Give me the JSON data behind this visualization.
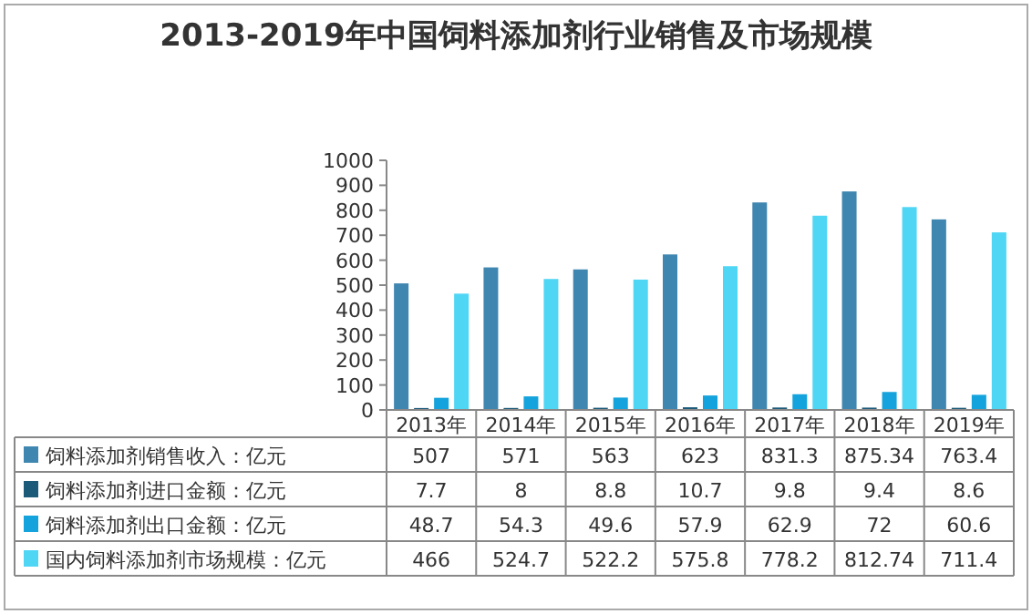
{
  "chart_data": {
    "type": "bar",
    "title": "2013-2019年中国饲料添加剂行业销售及市场规模",
    "categories": [
      "2013年",
      "2014年",
      "2015年",
      "2016年",
      "2017年",
      "2018年",
      "2019年"
    ],
    "series": [
      {
        "name": "饲料添加剂销售收入：亿元",
        "color": "#3f86b0",
        "values": [
          507,
          571,
          563,
          623,
          831.3,
          875.34,
          763.4
        ]
      },
      {
        "name": "饲料添加剂进口金额：亿元",
        "color": "#1c5a7a",
        "values": [
          7.7,
          8,
          8.8,
          10.7,
          9.8,
          9.4,
          8.6
        ]
      },
      {
        "name": "饲料添加剂出口金额：亿元",
        "color": "#14a3dc",
        "values": [
          48.7,
          54.3,
          49.6,
          57.9,
          62.9,
          72,
          60.6
        ]
      },
      {
        "name": "国内饲料添加剂市场规模：亿元",
        "color": "#4fd6f5",
        "values": [
          466,
          524.7,
          522.2,
          575.8,
          778.2,
          812.74,
          711.4
        ]
      }
    ],
    "ylim": [
      0,
      1000
    ],
    "yticks": [
      0,
      100,
      200,
      300,
      400,
      500,
      600,
      700,
      800,
      900,
      1000
    ],
    "data_labels": true,
    "legend": "bottom"
  }
}
